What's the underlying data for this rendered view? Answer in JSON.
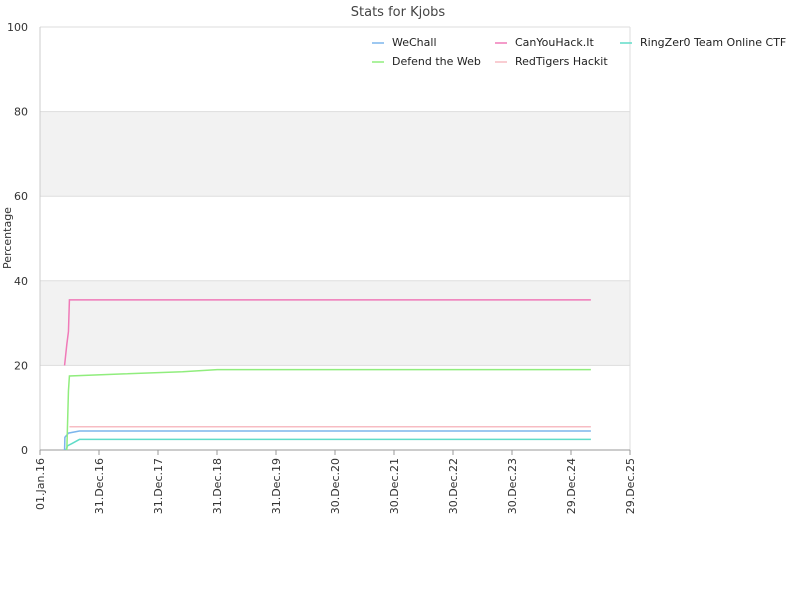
{
  "chart_data": {
    "type": "line",
    "title": "Stats for Kjobs",
    "xlabel": "",
    "ylabel": "Percentage",
    "ylim": [
      0,
      100
    ],
    "xlim": [
      "2016-01-01",
      "2025-12-29"
    ],
    "yticks": [
      0,
      20,
      40,
      60,
      80,
      100
    ],
    "xticks": [
      {
        "date": "2016-01-01",
        "label": "01.Jan.16"
      },
      {
        "date": "2016-12-31",
        "label": "31.Dec.16"
      },
      {
        "date": "2017-12-31",
        "label": "31.Dec.17"
      },
      {
        "date": "2018-12-31",
        "label": "31.Dec.18"
      },
      {
        "date": "2019-12-31",
        "label": "31.Dec.19"
      },
      {
        "date": "2020-12-30",
        "label": "30.Dec.20"
      },
      {
        "date": "2021-12-30",
        "label": "30.Dec.21"
      },
      {
        "date": "2022-12-30",
        "label": "30.Dec.22"
      },
      {
        "date": "2023-12-30",
        "label": "30.Dec.23"
      },
      {
        "date": "2024-12-29",
        "label": "29.Dec.24"
      },
      {
        "date": "2025-12-29",
        "label": "29.Dec.25"
      }
    ],
    "grid": true,
    "alternating_bands": true,
    "legend_position": "top-right",
    "series": [
      {
        "name": "WeChall",
        "color": "#7cb5ec",
        "points": [
          [
            "2016-06-01",
            0
          ],
          [
            "2016-06-03",
            3
          ],
          [
            "2016-06-25",
            4
          ],
          [
            "2016-09-01",
            4.5
          ],
          [
            "2025-05-01",
            4.5
          ]
        ]
      },
      {
        "name": "CanYouHack.It",
        "color": "#f07ab8",
        "points": [
          [
            "2016-06-01",
            20
          ],
          [
            "2016-06-15",
            25
          ],
          [
            "2016-06-25",
            28
          ],
          [
            "2016-07-01",
            35.5
          ],
          [
            "2025-05-01",
            35.5
          ]
        ]
      },
      {
        "name": "RingZer0 Team Online CTF",
        "color": "#60dcc8",
        "points": [
          [
            "2016-06-10",
            0
          ],
          [
            "2016-06-20",
            1
          ],
          [
            "2016-07-15",
            1.5
          ],
          [
            "2016-09-01",
            2.5
          ],
          [
            "2025-05-01",
            2.5
          ]
        ]
      },
      {
        "name": "Defend the Web",
        "color": "#90ed7d",
        "points": [
          [
            "2016-06-15",
            0
          ],
          [
            "2016-06-25",
            14
          ],
          [
            "2016-07-01",
            17.5
          ],
          [
            "2017-06-01",
            18
          ],
          [
            "2018-06-01",
            18.5
          ],
          [
            "2019-01-01",
            19
          ],
          [
            "2025-05-01",
            19
          ]
        ]
      },
      {
        "name": "RedTigers Hackit",
        "color": "#f7bcc3",
        "points": [
          [
            "2016-07-01",
            5.5
          ],
          [
            "2025-05-01",
            5.5
          ]
        ]
      }
    ]
  }
}
